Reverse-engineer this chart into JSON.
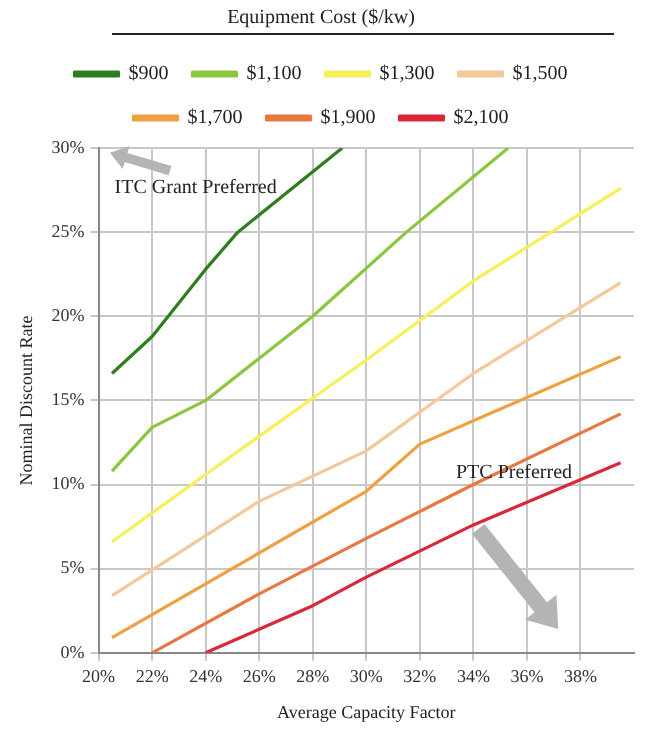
{
  "chart_data": {
    "type": "line",
    "xlabel": "Average Capacity Factor",
    "ylabel": "Nominal Discount Rate",
    "legend_title": "Equipment Cost ($/kw)",
    "legend": "top",
    "grid": true,
    "marker": "none",
    "line_style": "solid",
    "xlim": [
      20,
      40
    ],
    "ylim": [
      0,
      30
    ],
    "xticks": [
      {
        "value": 20,
        "label": "20%"
      },
      {
        "value": 22,
        "label": "22%"
      },
      {
        "value": 24,
        "label": "24%"
      },
      {
        "value": 26,
        "label": "26%"
      },
      {
        "value": 28,
        "label": "28%"
      },
      {
        "value": 30,
        "label": "30%"
      },
      {
        "value": 32,
        "label": "32%"
      },
      {
        "value": 34,
        "label": "34%"
      },
      {
        "value": 36,
        "label": "36%"
      },
      {
        "value": 38,
        "label": "38%"
      }
    ],
    "yticks": [
      {
        "value": 0,
        "label": "0%"
      },
      {
        "value": 5,
        "label": "5%"
      },
      {
        "value": 10,
        "label": "10%"
      },
      {
        "value": 15,
        "label": "15%"
      },
      {
        "value": 20,
        "label": "20%"
      },
      {
        "value": 25,
        "label": "25%"
      },
      {
        "value": 30,
        "label": "30%"
      }
    ],
    "annotations": [
      "ITC Grant Preferred",
      "PTC Preferred"
    ],
    "series": [
      {
        "name": "$900",
        "color": "#2e7d1f",
        "x": [
          20.5,
          22,
          24,
          25.2,
          29.1
        ],
        "values": [
          16.6,
          18.8,
          22.8,
          25,
          30
        ]
      },
      {
        "name": "$1,100",
        "color": "#8cc63f",
        "x": [
          20.5,
          22,
          24,
          28,
          31.5,
          35.3
        ],
        "values": [
          10.8,
          13.4,
          15,
          20,
          25,
          30
        ]
      },
      {
        "name": "$1,300",
        "color": "#f5f05a",
        "x": [
          20.5,
          24,
          30,
          34,
          39.5
        ],
        "values": [
          6.6,
          10.6,
          17.4,
          22.1,
          27.6
        ]
      },
      {
        "name": "$1,500",
        "color": "#f5c89a",
        "x": [
          20.5,
          26,
          30,
          34,
          39.5
        ],
        "values": [
          3.4,
          9,
          12,
          16.6,
          22
        ]
      },
      {
        "name": "$1,700",
        "color": "#f0a040",
        "x": [
          20.5,
          24,
          30,
          32,
          39.5
        ],
        "values": [
          0.9,
          4.1,
          9.6,
          12.4,
          17.6
        ]
      },
      {
        "name": "$1,900",
        "color": "#e87840",
        "x": [
          22,
          26,
          30,
          34,
          39.5
        ],
        "values": [
          0,
          3.5,
          6.8,
          10,
          14.2
        ]
      },
      {
        "name": "$2,100",
        "color": "#d8283a",
        "x": [
          24,
          28,
          30,
          34,
          39.5
        ],
        "values": [
          0,
          2.8,
          4.5,
          7.6,
          11.3
        ]
      }
    ]
  }
}
